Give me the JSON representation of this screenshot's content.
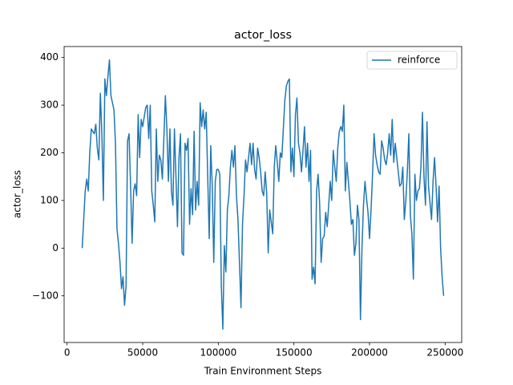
{
  "chart_data": {
    "type": "line",
    "title": "actor_loss",
    "xlabel": "Train Environment Steps",
    "ylabel": "actor_loss",
    "legend": "upper right",
    "grid": false,
    "xlim": [
      -1950,
      260950
    ],
    "ylim": [
      -198,
      423
    ],
    "xticks": [
      0,
      50000,
      100000,
      150000,
      200000,
      250000
    ],
    "yticks": [
      {
        "value": -100,
        "label": "−100"
      },
      0,
      100,
      200,
      300,
      400
    ],
    "x": [
      10000,
      11000,
      12000,
      13000,
      14000,
      15000,
      16000,
      17000,
      18000,
      19000,
      20000,
      21000,
      22000,
      23000,
      24000,
      25000,
      26000,
      27000,
      28000,
      29000,
      30000,
      31000,
      32000,
      33000,
      34000,
      35000,
      36000,
      37000,
      38000,
      39000,
      40000,
      41000,
      42000,
      43000,
      44000,
      45000,
      46000,
      47000,
      48000,
      49000,
      50000,
      51000,
      52000,
      53000,
      54000,
      55000,
      56000,
      57000,
      58000,
      59000,
      60000,
      61000,
      62000,
      63000,
      64000,
      65000,
      66000,
      67000,
      68000,
      69000,
      70000,
      71000,
      72000,
      73000,
      74000,
      75000,
      76000,
      77000,
      78000,
      79000,
      80000,
      81000,
      82000,
      83000,
      84000,
      85000,
      86000,
      87000,
      88000,
      89000,
      90000,
      91000,
      92000,
      93000,
      94000,
      95000,
      96000,
      97000,
      98000,
      99000,
      100000,
      101000,
      102000,
      103000,
      104000,
      105000,
      106000,
      107000,
      108000,
      109000,
      110000,
      111000,
      112000,
      113000,
      114000,
      115000,
      116000,
      117000,
      118000,
      119000,
      120000,
      121000,
      122000,
      123000,
      124000,
      125000,
      126000,
      127000,
      128000,
      129000,
      130000,
      131000,
      132000,
      133000,
      134000,
      135000,
      136000,
      137000,
      138000,
      139000,
      140000,
      141000,
      142000,
      143000,
      144000,
      145000,
      146000,
      147000,
      148000,
      149000,
      150000,
      151000,
      152000,
      153000,
      154000,
      155000,
      156000,
      157000,
      158000,
      159000,
      160000,
      161000,
      162000,
      163000,
      164000,
      165000,
      166000,
      167000,
      168000,
      169000,
      170000,
      171000,
      172000,
      173000,
      174000,
      175000,
      176000,
      177000,
      178000,
      179000,
      180000,
      181000,
      182000,
      183000,
      184000,
      185000,
      186000,
      187000,
      188000,
      189000,
      190000,
      191000,
      192000,
      193000,
      194000,
      195000,
      196000,
      197000,
      198000,
      199000,
      200000,
      201000,
      202000,
      203000,
      204000,
      205000,
      206000,
      207000,
      208000,
      209000,
      210000,
      211000,
      212000,
      213000,
      214000,
      215000,
      216000,
      217000,
      218000,
      219000,
      220000,
      221000,
      222000,
      223000,
      224000,
      225000,
      226000,
      227000,
      228000,
      229000,
      230000,
      231000,
      232000,
      233000,
      234000,
      235000,
      236000,
      237000,
      238000,
      239000,
      240000,
      241000,
      242000,
      243000,
      244000,
      245000,
      246000,
      247000,
      248000,
      249000
    ],
    "series": [
      {
        "name": "reinforce",
        "color": "#1f77b4",
        "values": [
          0,
          60,
          120,
          145,
          120,
          200,
          250,
          245,
          240,
          260,
          210,
          185,
          325,
          240,
          100,
          355,
          320,
          360,
          395,
          320,
          305,
          290,
          220,
          40,
          10,
          -30,
          -85,
          -60,
          -120,
          -80,
          225,
          240,
          130,
          10,
          120,
          135,
          110,
          280,
          190,
          270,
          255,
          275,
          295,
          300,
          230,
          300,
          120,
          90,
          55,
          250,
          140,
          195,
          185,
          145,
          230,
          320,
          250,
          140,
          250,
          120,
          90,
          250,
          150,
          45,
          190,
          240,
          -10,
          -15,
          220,
          205,
          230,
          50,
          125,
          70,
          245,
          80,
          140,
          90,
          305,
          255,
          290,
          250,
          285,
          150,
          20,
          215,
          130,
          -30,
          140,
          165,
          165,
          155,
          -80,
          -170,
          5,
          -50,
          80,
          110,
          170,
          205,
          170,
          215,
          110,
          60,
          -30,
          -125,
          50,
          110,
          185,
          160,
          190,
          220,
          175,
          220,
          165,
          145,
          210,
          190,
          160,
          120,
          110,
          160,
          115,
          -10,
          80,
          55,
          30,
          170,
          215,
          180,
          140,
          200,
          190,
          250,
          310,
          340,
          350,
          355,
          160,
          210,
          150,
          280,
          315,
          220,
          200,
          160,
          205,
          255,
          170,
          220,
          140,
          205,
          -65,
          -40,
          -75,
          120,
          155,
          95,
          -30,
          20,
          25,
          75,
          45,
          90,
          140,
          100,
          205,
          170,
          140,
          210,
          245,
          255,
          245,
          300,
          120,
          180,
          140,
          100,
          50,
          60,
          -15,
          10,
          90,
          60,
          -150,
          0,
          90,
          140,
          105,
          75,
          20,
          80,
          155,
          240,
          195,
          175,
          160,
          155,
          225,
          210,
          185,
          175,
          200,
          240,
          195,
          270,
          180,
          220,
          190,
          160,
          130,
          135,
          170,
          60,
          100,
          160,
          240,
          70,
          30,
          -65,
          155,
          100,
          120,
          125,
          170,
          285,
          150,
          90,
          265,
          130,
          95,
          60,
          140,
          190,
          130,
          55,
          130,
          0,
          -60,
          -100
        ]
      }
    ]
  }
}
